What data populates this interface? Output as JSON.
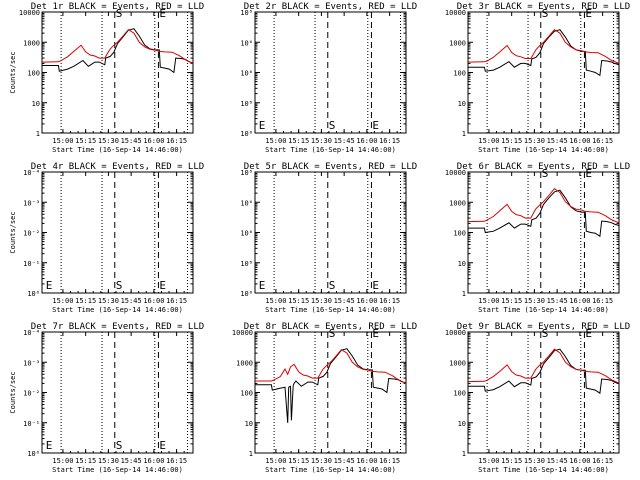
{
  "colors": {
    "events": "#000000",
    "lld": "#e00000",
    "axes": "#000000",
    "background": "#ffffff"
  },
  "chart_data": [
    {
      "type": "line",
      "panel": "1r",
      "title": "Det 1r BLACK = Events, RED = LLD",
      "empty": false,
      "xlabel": "Start Time (16-Sep-14 14:46:00)",
      "ylabel": "Counts/sec",
      "xticks": [
        "15:00",
        "15:15",
        "15:30",
        "15:45",
        "16:00",
        "16:15"
      ],
      "yticks": [
        "1",
        "10",
        "100",
        "1000",
        "10000"
      ],
      "ylim": [
        1,
        10000
      ],
      "yscale": "log",
      "markers": [
        {
          "label": "S",
          "x": 15.57
        },
        {
          "label": "E",
          "x": 16.05
        }
      ],
      "dotted_x": [
        14.98,
        15.43,
        16.01,
        16.37
      ],
      "series": [
        {
          "name": "Events",
          "color": "#000000",
          "x": [
            14.77,
            14.95,
            14.96,
            15.05,
            15.12,
            15.22,
            15.28,
            15.35,
            15.4,
            15.46,
            15.47,
            15.52,
            15.56,
            15.6,
            15.66,
            15.72,
            15.78,
            15.84,
            15.9,
            15.96,
            16.02,
            16.06,
            16.07,
            16.12,
            16.17,
            16.22,
            16.24,
            16.3,
            16.35,
            16.38,
            16.43
          ],
          "y": [
            170,
            170,
            110,
            130,
            160,
            250,
            160,
            220,
            220,
            180,
            300,
            340,
            470,
            900,
            1500,
            2500,
            2800,
            1600,
            800,
            600,
            560,
            560,
            150,
            140,
            130,
            100,
            300,
            290,
            270,
            230,
            210
          ]
        },
        {
          "name": "LLD",
          "color": "#e00000",
          "x": [
            14.77,
            14.95,
            14.98,
            15.05,
            15.12,
            15.2,
            15.25,
            15.3,
            15.35,
            15.4,
            15.46,
            15.5,
            15.52,
            15.56,
            15.6,
            15.66,
            15.72,
            15.78,
            15.84,
            15.9,
            15.96,
            16.02,
            16.06,
            16.12,
            16.2,
            16.28,
            16.35,
            16.43
          ],
          "y": [
            220,
            225,
            250,
            330,
            500,
            800,
            480,
            380,
            350,
            300,
            300,
            480,
            600,
            800,
            1000,
            1600,
            2600,
            2000,
            1000,
            700,
            580,
            540,
            500,
            480,
            470,
            360,
            260,
            200
          ]
        }
      ]
    },
    {
      "type": "line",
      "panel": "2r",
      "title": "Det 2r BLACK = Events, RED = LLD",
      "empty": true,
      "xlabel": "Start Time (16-Sep-14 14:46:00)",
      "ylabel": "",
      "xticks": [
        "15:00",
        "15:15",
        "15:30",
        "15:45",
        "16:00",
        "16:15"
      ],
      "yticks": [
        "10⁰",
        "10⁰",
        "10⁰",
        "10⁰",
        "10⁰"
      ],
      "yscale": "log",
      "markers": [
        {
          "label": "E",
          "x": 14.8
        },
        {
          "label": "S",
          "x": 15.57
        },
        {
          "label": "E",
          "x": 16.05
        }
      ],
      "dotted_x": [
        14.98,
        15.43,
        16.01,
        16.37
      ],
      "series": []
    },
    {
      "type": "line",
      "panel": "3r",
      "title": "Det 3r BLACK = Events, RED = LLD",
      "empty": false,
      "xlabel": "Start Time (16-Sep-14 14:46:00)",
      "ylabel": "",
      "xticks": [
        "15:00",
        "15:15",
        "15:30",
        "15:45",
        "16:00",
        "16:15"
      ],
      "yticks": [
        "1",
        "10",
        "100",
        "1000",
        "10000"
      ],
      "ylim": [
        1,
        10000
      ],
      "yscale": "log",
      "markers": [
        {
          "label": "S",
          "x": 15.57
        },
        {
          "label": "E",
          "x": 16.05
        }
      ],
      "dotted_x": [
        14.98,
        15.43,
        16.01,
        16.37
      ],
      "series": [
        {
          "name": "Events",
          "color": "#000000",
          "x": [
            14.77,
            14.95,
            14.96,
            15.05,
            15.12,
            15.22,
            15.28,
            15.35,
            15.4,
            15.46,
            15.47,
            15.52,
            15.56,
            15.6,
            15.66,
            15.72,
            15.78,
            15.84,
            15.9,
            15.96,
            16.02,
            16.06,
            16.07,
            16.12,
            16.17,
            16.22,
            16.24,
            16.3,
            16.35,
            16.38,
            16.43
          ],
          "y": [
            150,
            150,
            110,
            120,
            150,
            230,
            150,
            200,
            200,
            170,
            280,
            320,
            450,
            900,
            1500,
            2300,
            2600,
            1500,
            750,
            560,
            500,
            500,
            120,
            110,
            100,
            80,
            250,
            240,
            220,
            200,
            180
          ]
        },
        {
          "name": "LLD",
          "color": "#e00000",
          "x": [
            14.77,
            14.95,
            14.98,
            15.05,
            15.12,
            15.2,
            15.25,
            15.3,
            15.35,
            15.4,
            15.46,
            15.5,
            15.52,
            15.56,
            15.6,
            15.66,
            15.72,
            15.78,
            15.84,
            15.9,
            15.96,
            16.02,
            16.06,
            16.12,
            16.2,
            16.28,
            16.35,
            16.43
          ],
          "y": [
            220,
            225,
            240,
            320,
            480,
            780,
            460,
            360,
            330,
            290,
            290,
            460,
            580,
            780,
            1000,
            1600,
            2600,
            2000,
            1000,
            700,
            560,
            520,
            480,
            460,
            450,
            340,
            250,
            200
          ]
        }
      ]
    },
    {
      "type": "line",
      "panel": "4r",
      "title": "Det 4r BLACK = Events, RED = LLD",
      "empty": true,
      "xlabel": "Start Time (16-Sep-14 14:46:00)",
      "ylabel": "Counts/sec",
      "xticks": [
        "15:00",
        "15:15",
        "15:30",
        "15:45",
        "16:00",
        "16:15"
      ],
      "yticks": [
        "10⁰",
        "10⁻¹",
        "10⁻²",
        "10⁻³",
        "10⁻⁴"
      ],
      "yscale": "log",
      "markers": [
        {
          "label": "E",
          "x": 14.8
        },
        {
          "label": "S",
          "x": 15.57
        },
        {
          "label": "E",
          "x": 16.05
        }
      ],
      "dotted_x": [
        14.98,
        15.43,
        16.01,
        16.37
      ],
      "series": []
    },
    {
      "type": "line",
      "panel": "5r",
      "title": "Det 5r BLACK = Events, RED = LLD",
      "empty": true,
      "xlabel": "Start Time (16-Sep-14 14:46:00)",
      "ylabel": "",
      "xticks": [
        "15:00",
        "15:15",
        "15:30",
        "15:45",
        "16:00",
        "16:15"
      ],
      "yticks": [
        "10⁰",
        "10⁰",
        "10⁰",
        "10⁰",
        "10⁰"
      ],
      "yscale": "log",
      "markers": [
        {
          "label": "E",
          "x": 14.8
        },
        {
          "label": "S",
          "x": 15.57
        },
        {
          "label": "E",
          "x": 16.05
        }
      ],
      "dotted_x": [
        14.98,
        15.43,
        16.01,
        16.37
      ],
      "series": []
    },
    {
      "type": "line",
      "panel": "6r",
      "title": "Det 6r BLACK = Events, RED = LLD",
      "empty": false,
      "xlabel": "Start Time (16-Sep-14 14:46:00)",
      "ylabel": "",
      "xticks": [
        "15:00",
        "15:15",
        "15:30",
        "15:45",
        "16:00",
        "16:15"
      ],
      "yticks": [
        "1",
        "10",
        "100",
        "1000",
        "10000"
      ],
      "ylim": [
        1,
        10000
      ],
      "yscale": "log",
      "markers": [
        {
          "label": "S",
          "x": 15.57
        },
        {
          "label": "E",
          "x": 16.05
        }
      ],
      "dotted_x": [
        14.98,
        15.43,
        16.01,
        16.37
      ],
      "series": [
        {
          "name": "Events",
          "color": "#000000",
          "x": [
            14.77,
            14.95,
            14.96,
            15.05,
            15.12,
            15.22,
            15.28,
            15.35,
            15.4,
            15.46,
            15.47,
            15.52,
            15.56,
            15.6,
            15.66,
            15.72,
            15.78,
            15.84,
            15.9,
            15.96,
            16.02,
            16.06,
            16.07,
            16.12,
            16.17,
            16.22,
            16.24,
            16.3,
            16.35,
            16.38,
            16.43
          ],
          "y": [
            140,
            140,
            100,
            110,
            140,
            210,
            140,
            190,
            190,
            160,
            260,
            300,
            430,
            850,
            1400,
            2200,
            2500,
            1400,
            700,
            520,
            470,
            470,
            110,
            100,
            95,
            75,
            240,
            230,
            210,
            190,
            170
          ]
        },
        {
          "name": "LLD",
          "color": "#e00000",
          "x": [
            14.77,
            14.95,
            14.98,
            15.05,
            15.12,
            15.2,
            15.25,
            15.3,
            15.35,
            15.4,
            15.46,
            15.5,
            15.52,
            15.56,
            15.6,
            15.66,
            15.72,
            15.78,
            15.84,
            15.9,
            15.96,
            16.02,
            16.06,
            16.12,
            16.2,
            16.28,
            16.35,
            16.43
          ],
          "y": [
            230,
            235,
            260,
            340,
            520,
            850,
            500,
            390,
            360,
            300,
            300,
            500,
            620,
            820,
            1050,
            1700,
            2800,
            2100,
            1050,
            720,
            590,
            550,
            500,
            480,
            470,
            360,
            260,
            210
          ]
        }
      ]
    },
    {
      "type": "line",
      "panel": "7r",
      "title": "Det 7r BLACK = Events, RED = LLD",
      "empty": true,
      "xlabel": "Start Time (16-Sep-14 14:46:00)",
      "ylabel": "Counts/sec",
      "xticks": [
        "15:00",
        "15:15",
        "15:30",
        "15:45",
        "16:00",
        "16:15"
      ],
      "yticks": [
        "10⁰",
        "10⁻¹",
        "10⁻²",
        "10⁻³",
        "10⁻⁴"
      ],
      "yscale": "log",
      "markers": [
        {
          "label": "E",
          "x": 14.8
        },
        {
          "label": "S",
          "x": 15.57
        },
        {
          "label": "E",
          "x": 16.05
        }
      ],
      "dotted_x": [
        14.98,
        15.43,
        16.01,
        16.37
      ],
      "series": []
    },
    {
      "type": "line",
      "panel": "8r",
      "title": "Det 8r BLACK = Events, RED = LLD",
      "empty": false,
      "xlabel": "Start Time (16-Sep-14 14:46:00)",
      "ylabel": "",
      "xticks": [
        "15:00",
        "15:15",
        "15:30",
        "15:45",
        "16:00",
        "16:15"
      ],
      "yticks": [
        "1",
        "10",
        "100",
        "1000",
        "10000"
      ],
      "ylim": [
        1,
        10000
      ],
      "yscale": "log",
      "markers": [
        {
          "label": "S",
          "x": 15.57
        },
        {
          "label": "E",
          "x": 16.05
        }
      ],
      "dotted_x": [
        14.98,
        15.43,
        16.01,
        16.37
      ],
      "series": [
        {
          "name": "Events",
          "color": "#000000",
          "x": [
            14.77,
            14.95,
            14.96,
            15.05,
            15.1,
            15.13,
            15.14,
            15.16,
            15.17,
            15.19,
            15.2,
            15.22,
            15.28,
            15.35,
            15.4,
            15.46,
            15.47,
            15.52,
            15.56,
            15.6,
            15.66,
            15.72,
            15.78,
            15.84,
            15.9,
            15.96,
            16.02,
            16.06,
            16.07,
            16.12,
            16.17,
            16.22,
            16.24,
            16.3,
            16.35,
            16.38,
            16.43
          ],
          "y": [
            180,
            180,
            120,
            140,
            150,
            10,
            150,
            160,
            12,
            170,
            200,
            240,
            160,
            220,
            220,
            180,
            300,
            340,
            470,
            900,
            1500,
            2500,
            2800,
            1600,
            800,
            600,
            560,
            560,
            150,
            140,
            130,
            100,
            290,
            280,
            260,
            230,
            210
          ]
        },
        {
          "name": "LLD",
          "color": "#e00000",
          "x": [
            14.77,
            14.95,
            14.98,
            15.05,
            15.1,
            15.13,
            15.16,
            15.2,
            15.25,
            15.3,
            15.35,
            15.4,
            15.46,
            15.5,
            15.52,
            15.56,
            15.6,
            15.66,
            15.72,
            15.78,
            15.84,
            15.9,
            15.96,
            16.02,
            16.06,
            16.12,
            16.2,
            16.28,
            16.35,
            16.43
          ],
          "y": [
            240,
            240,
            260,
            340,
            600,
            400,
            700,
            850,
            480,
            380,
            350,
            300,
            300,
            480,
            600,
            800,
            1000,
            1600,
            2600,
            2000,
            1000,
            700,
            580,
            540,
            500,
            480,
            470,
            360,
            260,
            200
          ]
        }
      ]
    },
    {
      "type": "line",
      "panel": "9r",
      "title": "Det 9r BLACK = Events, RED = LLD",
      "empty": false,
      "xlabel": "Start Time (16-Sep-14 14:46:00)",
      "ylabel": "",
      "xticks": [
        "15:00",
        "15:15",
        "15:30",
        "15:45",
        "16:00",
        "16:15"
      ],
      "yticks": [
        "1",
        "10",
        "100",
        "1000",
        "10000"
      ],
      "ylim": [
        1,
        10000
      ],
      "yscale": "log",
      "markers": [
        {
          "label": "S",
          "x": 15.57
        },
        {
          "label": "E",
          "x": 16.05
        }
      ],
      "dotted_x": [
        14.98,
        15.43,
        16.01,
        16.37
      ],
      "series": [
        {
          "name": "Events",
          "color": "#000000",
          "x": [
            14.77,
            14.95,
            14.96,
            15.05,
            15.12,
            15.22,
            15.28,
            15.35,
            15.4,
            15.46,
            15.47,
            15.52,
            15.56,
            15.6,
            15.66,
            15.72,
            15.78,
            15.84,
            15.9,
            15.96,
            16.02,
            16.06,
            16.07,
            16.12,
            16.17,
            16.22,
            16.24,
            16.3,
            16.35,
            16.38,
            16.43
          ],
          "y": [
            160,
            160,
            110,
            125,
            155,
            240,
            155,
            210,
            210,
            175,
            290,
            330,
            460,
            880,
            1450,
            2400,
            2700,
            1550,
            780,
            580,
            540,
            540,
            140,
            130,
            120,
            95,
            280,
            270,
            250,
            220,
            200
          ]
        },
        {
          "name": "LLD",
          "color": "#e00000",
          "x": [
            14.77,
            14.95,
            14.98,
            15.05,
            15.12,
            15.2,
            15.25,
            15.3,
            15.35,
            15.4,
            15.46,
            15.5,
            15.52,
            15.56,
            15.6,
            15.66,
            15.72,
            15.78,
            15.84,
            15.9,
            15.96,
            16.02,
            16.06,
            16.12,
            16.2,
            16.28,
            16.35,
            16.43
          ],
          "y": [
            230,
            235,
            255,
            340,
            500,
            820,
            490,
            380,
            350,
            300,
            300,
            490,
            610,
            810,
            1020,
            1650,
            2700,
            2050,
            1020,
            710,
            580,
            540,
            500,
            480,
            470,
            360,
            260,
            205
          ]
        }
      ]
    }
  ]
}
